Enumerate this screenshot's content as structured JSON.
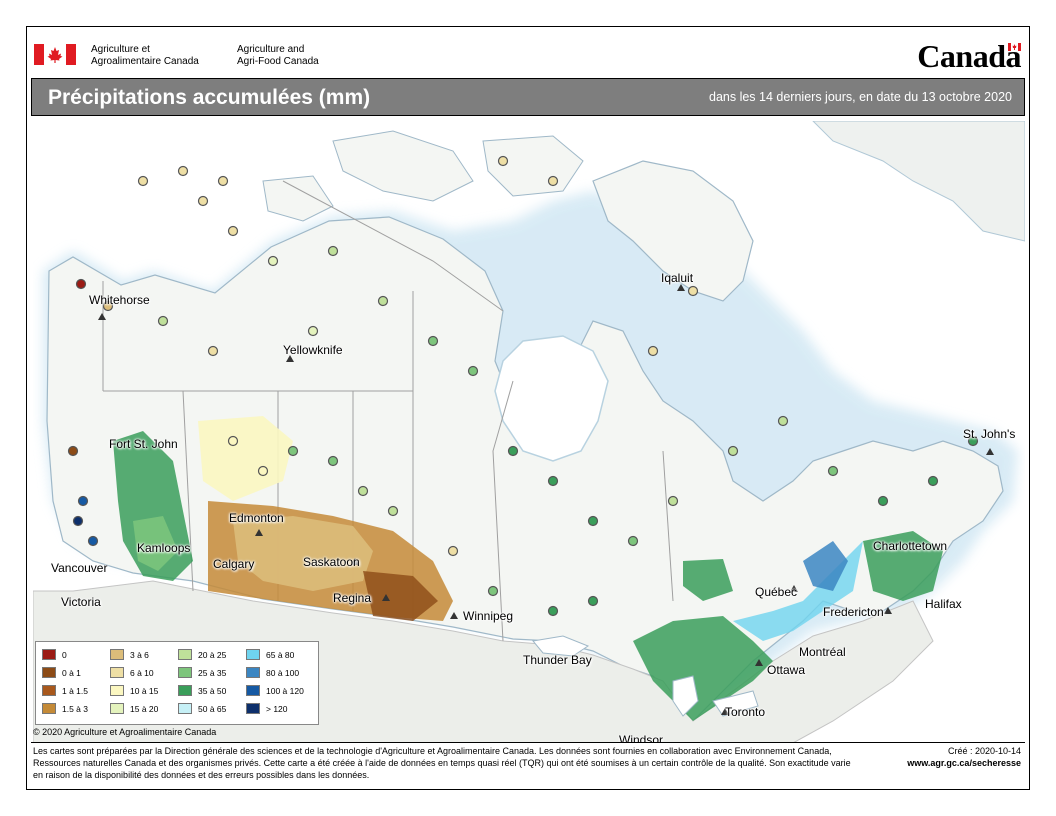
{
  "header": {
    "dept_fr_line1": "Agriculture et",
    "dept_fr_line2": "Agroalimentaire Canada",
    "dept_en_line1": "Agriculture and",
    "dept_en_line2": "Agri-Food Canada",
    "wordmark": "Canada"
  },
  "titlebar": {
    "title": "Précipitations accumulées (mm)",
    "subtitle": "dans les 14 derniers jours, en date du 13 octobre 2020"
  },
  "cities": {
    "whitehorse": "Whitehorse",
    "yellowknife": "Yellowknife",
    "iqaluit": "Iqaluit",
    "fort_st_john": "Fort St. John",
    "edmonton": "Edmonton",
    "kamloops": "Kamloops",
    "calgary": "Calgary",
    "saskatoon": "Saskatoon",
    "vancouver": "Vancouver",
    "victoria": "Victoria",
    "regina": "Regina",
    "winnipeg": "Winnipeg",
    "thunder_bay": "Thunder Bay",
    "ottawa": "Ottawa",
    "montreal": "Montréal",
    "quebec": "Québec",
    "fredericton": "Fredericton",
    "charlottetown": "Charlottetown",
    "halifax": "Halifax",
    "st_johns": "St. John's",
    "toronto": "Toronto",
    "windsor": "Windsor"
  },
  "legend": {
    "items": [
      {
        "label": "0",
        "color": "#9b1b14"
      },
      {
        "label": "0 à 1",
        "color": "#8c4b16"
      },
      {
        "label": "1 à 1.5",
        "color": "#a8581c"
      },
      {
        "label": "1.5 à 3",
        "color": "#c48a37"
      },
      {
        "label": "3 à 6",
        "color": "#dcbd7a"
      },
      {
        "label": "6 à 10",
        "color": "#eedfa5"
      },
      {
        "label": "10 à 15",
        "color": "#fbf7c1"
      },
      {
        "label": "15 à 20",
        "color": "#e4f3bd"
      },
      {
        "label": "20 à 25",
        "color": "#bfe09a"
      },
      {
        "label": "25 à 35",
        "color": "#7dc57c"
      },
      {
        "label": "35 à 50",
        "color": "#3a9e5a"
      },
      {
        "label": "50 à 65",
        "color": "#c6f0f6"
      },
      {
        "label": "65 à 80",
        "color": "#6fd4ef"
      },
      {
        "label": "80 à 100",
        "color": "#3b86c2"
      },
      {
        "label": "100 à 120",
        "color": "#1559a3"
      },
      {
        "label": "> 120",
        "color": "#0d2f6b"
      }
    ]
  },
  "copyright": "© 2020 Agriculture et Agroalimentaire Canada",
  "footnote": "Les cartes sont préparées par la Direction générale des sciences et de la technologie d'Agriculture et Agroalimentaire Canada. Les données sont fournies en collaboration avec Environnement Canada, Ressources naturelles Canada et des organismes privés. Cette carte a été créée à l'aide de données en temps quasi réel (TQR) qui ont été soumises à un certain contrôle de la qualité. Son exactitude varie en raison de la disponibilité des données et des erreurs possibles dans les données.",
  "created": "Créé : 2020-10-14",
  "url": "www.agr.gc.ca/secheresse"
}
